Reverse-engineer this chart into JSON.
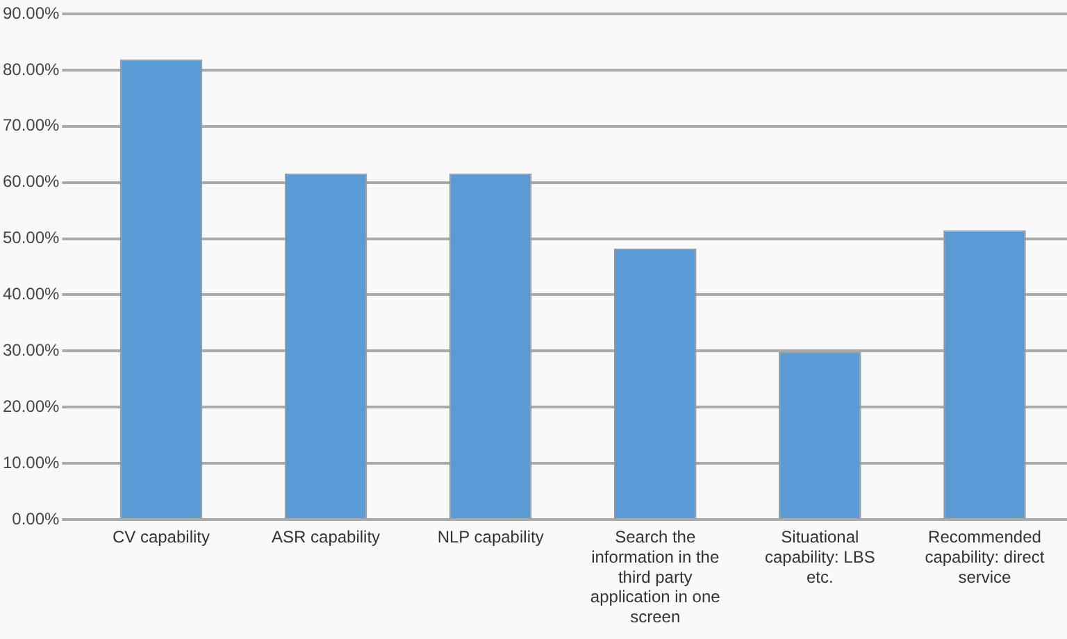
{
  "chart_data": {
    "type": "bar",
    "categories": [
      "CV capability",
      "ASR capability",
      "NLP capability",
      "Search the information in the third party application in one screen",
      "Situational capability: LBS etc.",
      "Recommended capability: direct service"
    ],
    "values": [
      81.9,
      61.6,
      61.6,
      48.2,
      29.8,
      51.5
    ],
    "color": "#5b9bd5",
    "ylim": [
      0,
      90
    ],
    "yticks": [
      {
        "value": 0,
        "label": "0.00%"
      },
      {
        "value": 10,
        "label": "10.00%"
      },
      {
        "value": 20,
        "label": "20.00%"
      },
      {
        "value": 30,
        "label": "30.00%"
      },
      {
        "value": 40,
        "label": "40.00%"
      },
      {
        "value": 50,
        "label": "50.00%"
      },
      {
        "value": 60,
        "label": "60.00%"
      },
      {
        "value": 70,
        "label": "70.00%"
      },
      {
        "value": 80,
        "label": "80.00%"
      },
      {
        "value": 90,
        "label": "90.00%"
      }
    ],
    "grid": "y"
  }
}
